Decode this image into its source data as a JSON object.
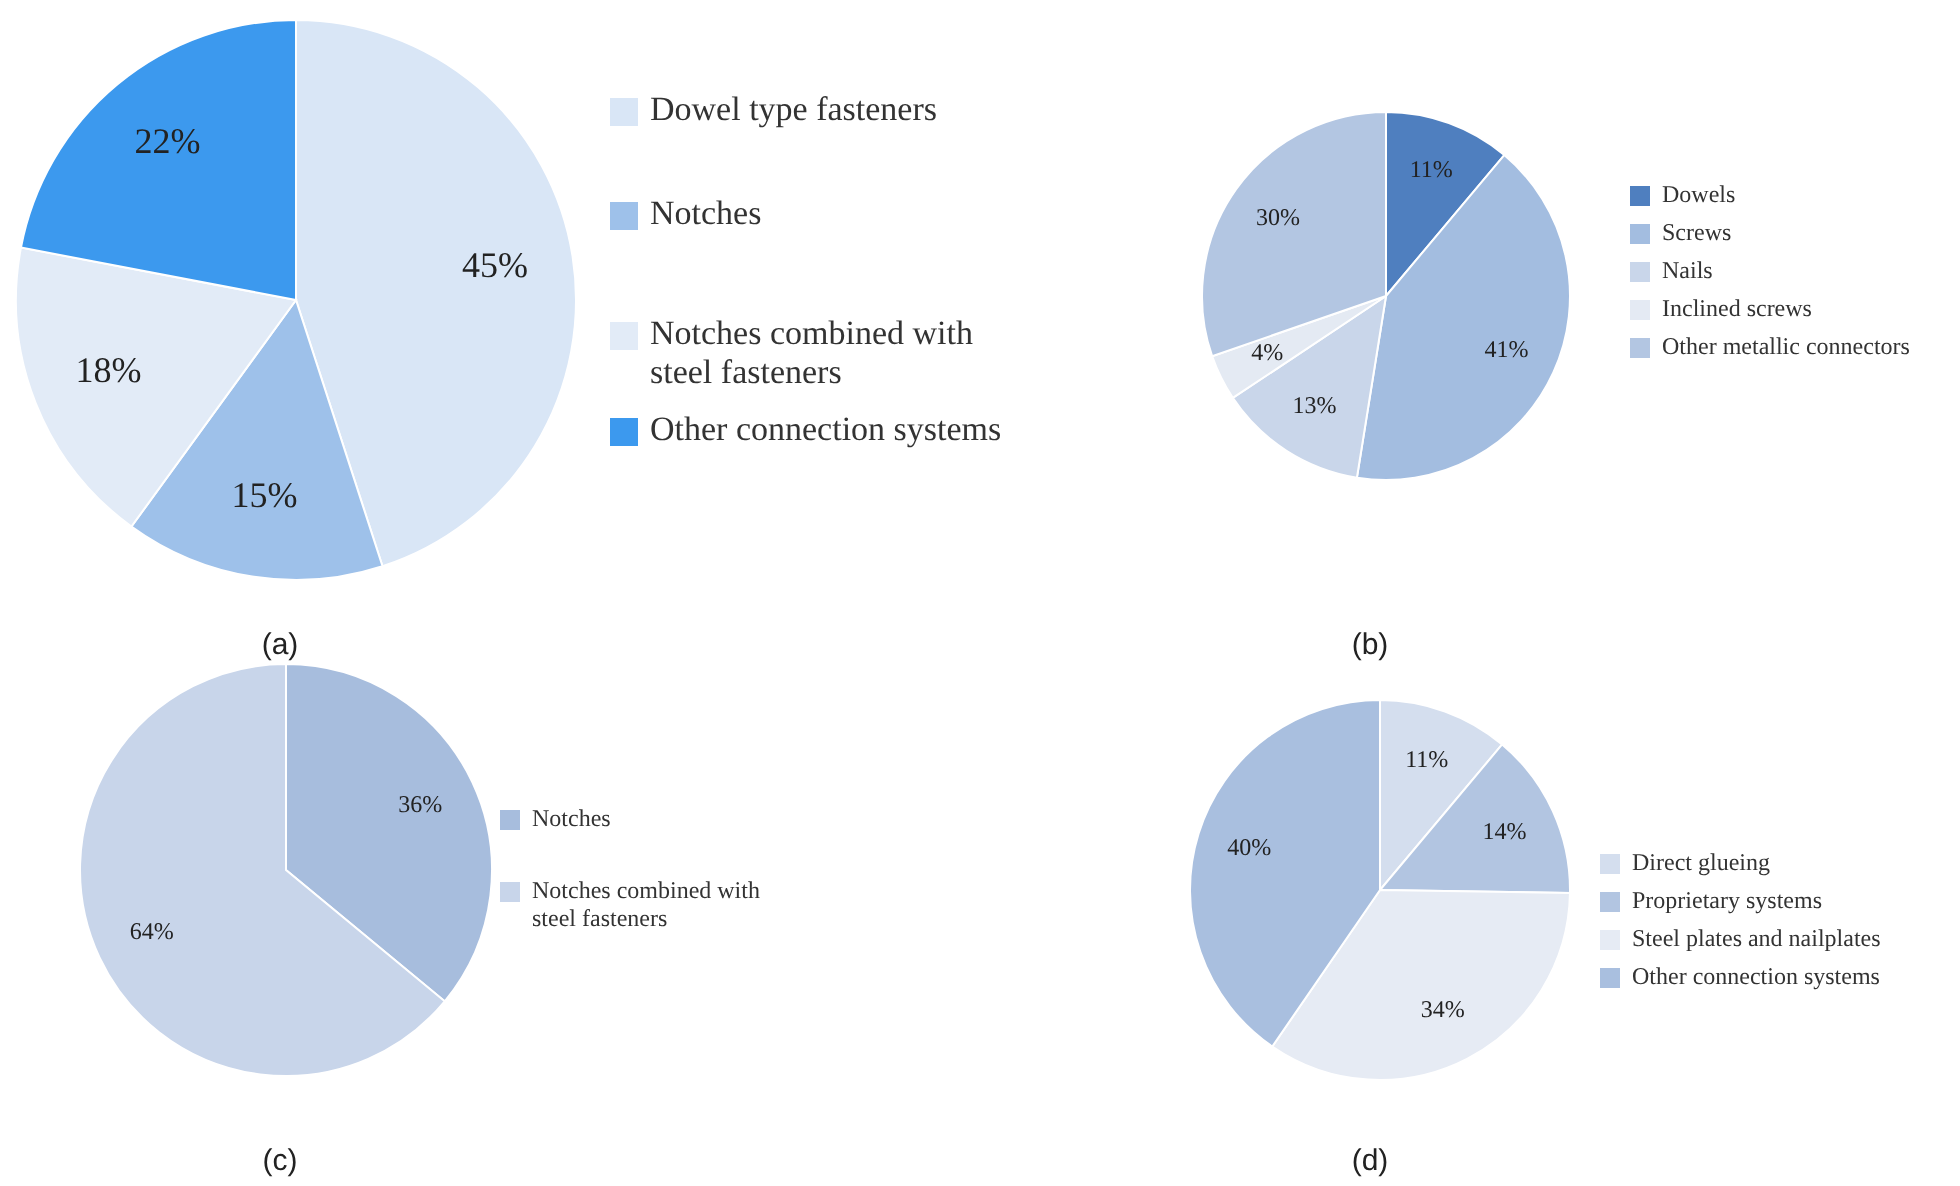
{
  "chart_data": [
    {
      "type": "pie",
      "categories": [
        "Dowel type fasteners",
        "Notches",
        "Notches combined with steel fasteners",
        "Other connection systems"
      ],
      "values": [
        45,
        15,
        18,
        22
      ],
      "value_labels": [
        "45%",
        "15%",
        "18%",
        "22%"
      ],
      "colors": [
        "#d9e6f6",
        "#9ec1ea",
        "#e2ebf7",
        "#3c99ee"
      ],
      "legend": "right",
      "annotations": [
        "(a)"
      ]
    },
    {
      "type": "pie",
      "categories": [
        "Dowels",
        "Screws",
        "Nails",
        "Inclined screws",
        "Other metallic connectors"
      ],
      "values": [
        11,
        41,
        13,
        4,
        30
      ],
      "value_labels": [
        "11%",
        "41%",
        "13%",
        "4%",
        "30%"
      ],
      "colors": [
        "#4f7fbf",
        "#a3bde0",
        "#c9d6ea",
        "#e4eaf3",
        "#b3c6e2"
      ],
      "legend": "right",
      "annotations": [
        "(b)"
      ]
    },
    {
      "type": "pie",
      "categories": [
        "Notches",
        "Notches combined with steel fasteners"
      ],
      "values": [
        36,
        64
      ],
      "value_labels": [
        "36%",
        "64%"
      ],
      "colors": [
        "#a7bddd",
        "#c8d5ea"
      ],
      "legend": "right",
      "annotations": [
        "(c)"
      ]
    },
    {
      "type": "pie",
      "categories": [
        "Direct glueing",
        "Proprietary systems",
        "Steel plates and nailplates",
        "Other connection systems"
      ],
      "values": [
        11,
        14,
        34,
        40
      ],
      "value_labels": [
        "11%",
        "14%",
        "34%",
        "40%"
      ],
      "colors": [
        "#d4deee",
        "#b2c5e1",
        "#e6ebf4",
        "#a9bfdf"
      ],
      "legend": "right",
      "annotations": [
        "(d)"
      ]
    }
  ]
}
